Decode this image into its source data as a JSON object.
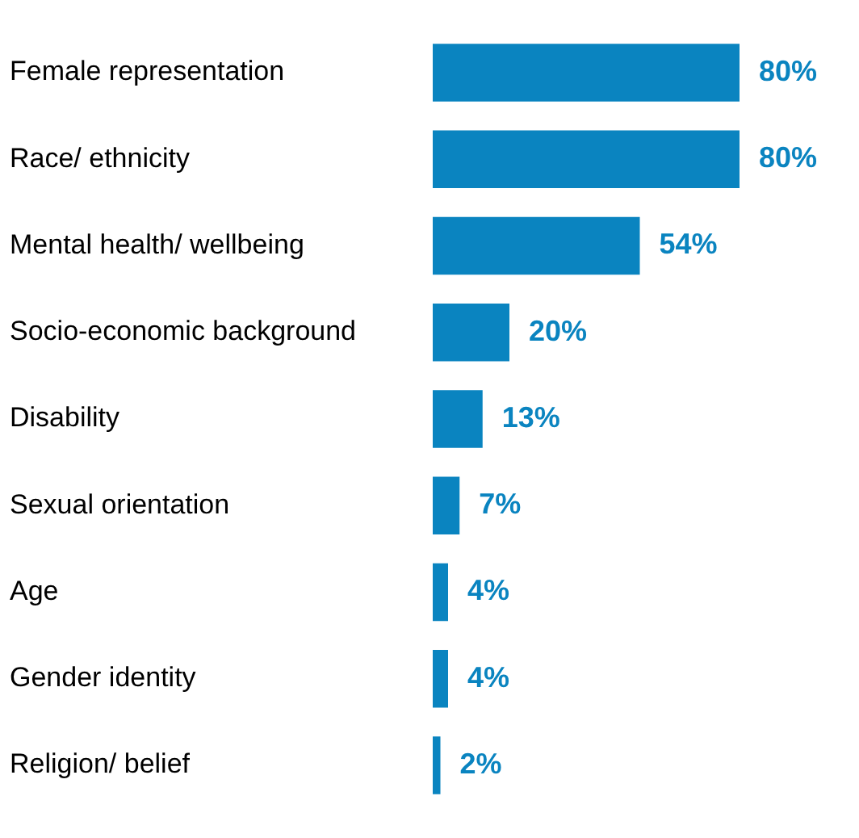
{
  "chart_data": {
    "type": "bar",
    "orientation": "horizontal",
    "categories": [
      "Female representation",
      "Race/ ethnicity",
      "Mental health/ wellbeing",
      "Socio-economic background",
      "Disability",
      "Sexual orientation",
      "Age",
      "Gender identity",
      "Religion/ belief"
    ],
    "values": [
      80,
      80,
      54,
      20,
      13,
      7,
      4,
      4,
      2
    ],
    "value_labels": [
      "80%",
      "80%",
      "54%",
      "20%",
      "13%",
      "7%",
      "4%",
      "4%",
      "2%"
    ],
    "color": "#0a84c0"
  }
}
